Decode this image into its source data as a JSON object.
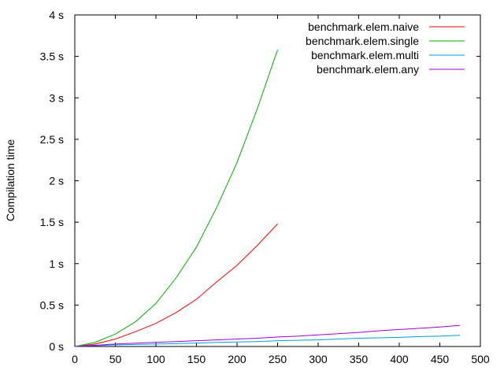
{
  "chart_data": {
    "type": "line",
    "title": "",
    "xlabel": "",
    "ylabel": "Compilation time",
    "xlim": [
      0,
      500
    ],
    "ylim": [
      0,
      4
    ],
    "x_ticks": [
      "0",
      "50",
      "100",
      "150",
      "200",
      "250",
      "300",
      "350",
      "400",
      "450",
      "500"
    ],
    "y_ticks": [
      "0 s",
      "0.5 s",
      "1 s",
      "1.5 s",
      "2 s",
      "2.5 s",
      "3 s",
      "3.5 s",
      "4 s"
    ],
    "grid": false,
    "legend_position": "top-right",
    "series": [
      {
        "name": "benchmark.elem.naive",
        "color": "#ff0000",
        "x": [
          0,
          25,
          50,
          75,
          100,
          125,
          150,
          175,
          200,
          225,
          250
        ],
        "y": [
          0.0,
          0.03,
          0.09,
          0.18,
          0.28,
          0.41,
          0.57,
          0.78,
          0.98,
          1.22,
          1.48
        ]
      },
      {
        "name": "benchmark.elem.single",
        "color": "#00b000",
        "x": [
          0,
          25,
          50,
          75,
          100,
          125,
          150,
          175,
          200,
          225,
          250
        ],
        "y": [
          0.0,
          0.05,
          0.15,
          0.3,
          0.52,
          0.83,
          1.2,
          1.68,
          2.22,
          2.87,
          3.58
        ]
      },
      {
        "name": "benchmark.elem.multi",
        "color": "#009ee0",
        "x": [
          0,
          25,
          50,
          75,
          100,
          125,
          150,
          175,
          200,
          225,
          250,
          275,
          300,
          325,
          350,
          375,
          400,
          425,
          450,
          475
        ],
        "y": [
          0.0,
          0.01,
          0.02,
          0.025,
          0.03,
          0.035,
          0.04,
          0.05,
          0.055,
          0.06,
          0.07,
          0.075,
          0.08,
          0.09,
          0.1,
          0.105,
          0.11,
          0.12,
          0.125,
          0.135
        ]
      },
      {
        "name": "benchmark.elem.any",
        "color": "#a000e0",
        "x": [
          0,
          25,
          50,
          75,
          100,
          125,
          150,
          175,
          200,
          225,
          250,
          275,
          300,
          325,
          350,
          375,
          400,
          425,
          450,
          475
        ],
        "y": [
          0.0,
          0.015,
          0.03,
          0.04,
          0.05,
          0.06,
          0.07,
          0.08,
          0.09,
          0.1,
          0.115,
          0.125,
          0.14,
          0.155,
          0.17,
          0.19,
          0.205,
          0.22,
          0.235,
          0.255
        ]
      }
    ]
  }
}
